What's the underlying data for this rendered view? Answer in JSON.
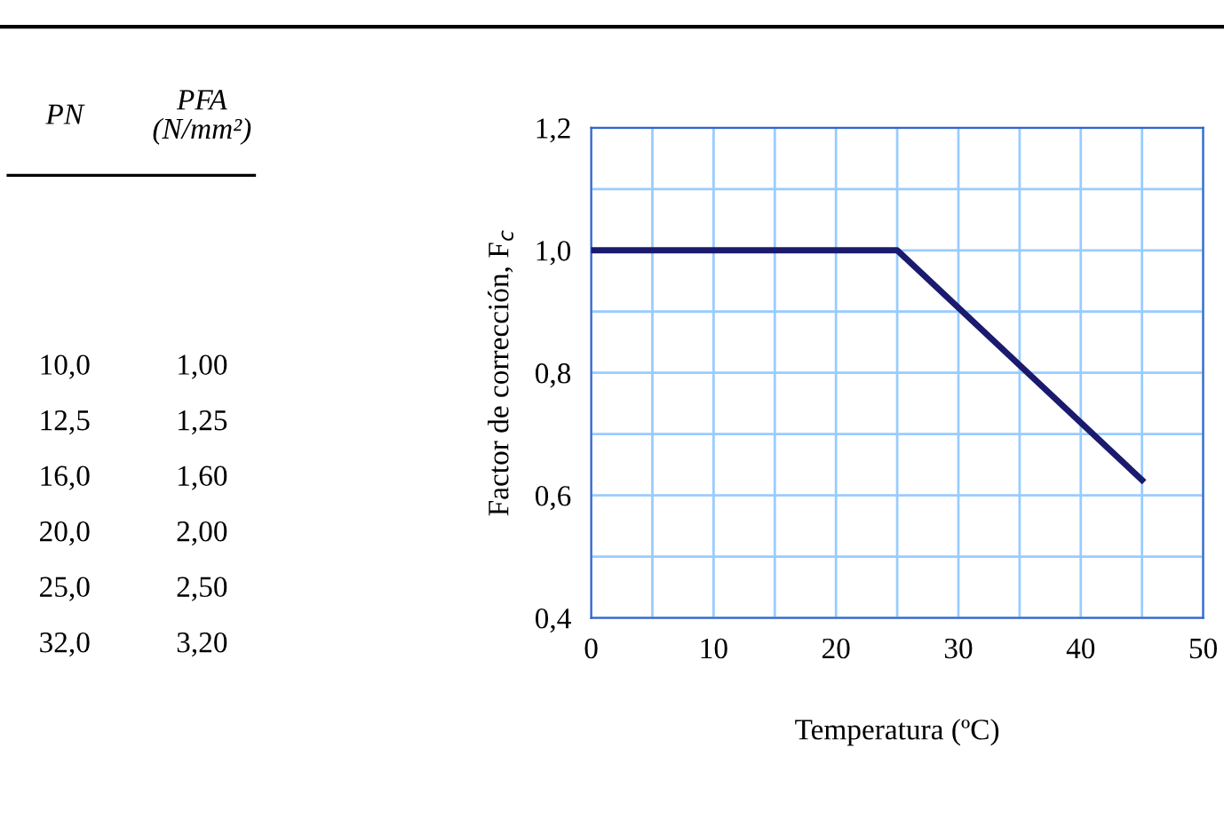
{
  "chart_data": [
    {
      "type": "other",
      "annotations": [
        "PN",
        "PFA\n(N/mm²)",
        "10,0",
        "1,00",
        "12,5",
        "1,25",
        "16,0",
        "1,60",
        "20,0",
        "2,00",
        "25,0",
        "2,50",
        "32,0",
        "3,20"
      ]
    },
    {
      "type": "line",
      "xlabel": "Temperatura (ºC)",
      "ylabel": "Factor de corrección, F$_{c}$",
      "x": [
        0,
        25,
        45
      ],
      "values": [
        1.0,
        1.0,
        0.625
      ],
      "color": "#1a1a6e",
      "marker": "none",
      "line_style": "solid",
      "grid": true,
      "xlim": [
        0,
        50
      ],
      "ylim": [
        0.4,
        1.2
      ],
      "xticks": [
        0,
        {
          "value": 5,
          "label": null
        },
        10,
        {
          "value": 15,
          "label": null
        },
        20,
        {
          "value": 25,
          "label": null
        },
        30,
        {
          "value": 35,
          "label": null
        },
        40,
        {
          "value": 45,
          "label": null
        },
        50
      ],
      "yticks": [
        {
          "value": 0.4,
          "label": "0,4"
        },
        {
          "value": 0.5,
          "label": null
        },
        {
          "value": 0.6,
          "label": "0,6"
        },
        {
          "value": 0.7,
          "label": null
        },
        {
          "value": 0.8,
          "label": "0,8"
        },
        {
          "value": 0.9,
          "label": null
        },
        {
          "value": 1.0,
          "label": "1,0"
        },
        {
          "value": 1.1,
          "label": null
        },
        {
          "value": 1.2,
          "label": "1,2"
        }
      ]
    }
  ]
}
